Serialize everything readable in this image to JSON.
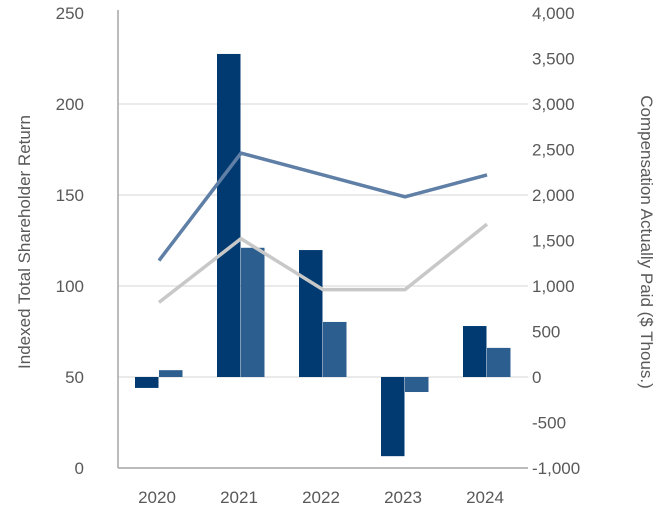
{
  "chart_data": {
    "type": "bar+line",
    "categories": [
      "2020",
      "2021",
      "2022",
      "2023",
      "2024"
    ],
    "left_axis": {
      "label": "Indexed Total Shareholder Return",
      "ylim": [
        0,
        250
      ],
      "ticks": [
        "0",
        "50",
        "100",
        "150",
        "200",
        "250"
      ],
      "tick_values": [
        0,
        50,
        100,
        150,
        200,
        250
      ]
    },
    "right_axis": {
      "label": "Compensation Actually Paid ($ Thous.)",
      "ylim": [
        -1000,
        4000
      ],
      "ticks": [
        "-1,000",
        "-500",
        "0",
        "500",
        "1,000",
        "1,500",
        "2,000",
        "2,500",
        "3,000",
        "3,500",
        "4,000"
      ],
      "tick_values": [
        -1000,
        -500,
        0,
        500,
        1000,
        1500,
        2000,
        2500,
        3000,
        3500,
        4000
      ]
    },
    "bar_series": [
      {
        "axis": "right",
        "color": "#003a70",
        "values": [
          -120,
          3550,
          1395,
          -870,
          560
        ]
      },
      {
        "axis": "right",
        "color": "#2c5f8f",
        "values": [
          75,
          1420,
          605,
          -165,
          320
        ]
      }
    ],
    "line_series": [
      {
        "axis": "left",
        "color": "#5f7fa6",
        "values": [
          114,
          173,
          161,
          149,
          161
        ]
      },
      {
        "axis": "left",
        "color": "#c8c8c8",
        "values": [
          91,
          126,
          98,
          98,
          134
        ]
      }
    ],
    "grid": true,
    "legend": "none"
  }
}
